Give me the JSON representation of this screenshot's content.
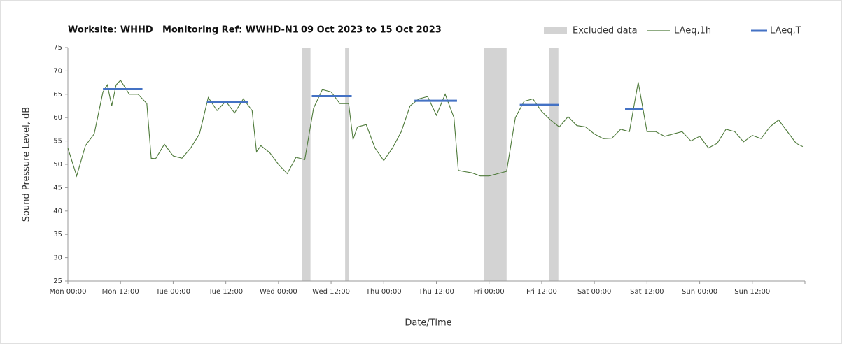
{
  "chart_data": {
    "type": "line",
    "title": [
      "Worksite: WHHD",
      "Monitoring Ref: WWHD-N1",
      "09 Oct 2023 to 15 Oct 2023"
    ],
    "xlabel": "Date/Time",
    "ylabel": "Sound Pressure Level, dB",
    "xlim": [
      0,
      168
    ],
    "ylim": [
      25,
      75
    ],
    "yticks": [
      25,
      30,
      35,
      40,
      45,
      50,
      55,
      60,
      65,
      70,
      75
    ],
    "xticks": [
      {
        "value": 0,
        "label": "Mon 00:00"
      },
      {
        "value": 12,
        "label": "Mon 12:00"
      },
      {
        "value": 24,
        "label": "Tue 00:00"
      },
      {
        "value": 36,
        "label": "Tue 12:00"
      },
      {
        "value": 48,
        "label": "Wed 00:00"
      },
      {
        "value": 60,
        "label": "Wed 12:00"
      },
      {
        "value": 72,
        "label": "Thu 00:00"
      },
      {
        "value": 84,
        "label": "Thu 12:00"
      },
      {
        "value": 96,
        "label": "Fri 00:00"
      },
      {
        "value": 108,
        "label": "Fri 12:00"
      },
      {
        "value": 120,
        "label": "Sat 00:00"
      },
      {
        "value": 132,
        "label": "Sat 12:00"
      },
      {
        "value": 144,
        "label": "Sun 00:00"
      },
      {
        "value": 156,
        "label": "Sun 12:00"
      }
    ],
    "grid": false,
    "excluded": {
      "name": "Excluded data",
      "color": "#d3d3d3",
      "ranges": [
        [
          53.4,
          55.3
        ],
        [
          63.2,
          64.1
        ],
        [
          94.9,
          100
        ],
        [
          109.7,
          111.8
        ]
      ]
    },
    "series": [
      {
        "name": "LAeq,1h",
        "color": "#4e7a3a",
        "x": [
          0,
          2,
          4,
          6,
          8,
          9,
          10,
          11,
          12,
          14,
          16,
          18,
          19,
          20,
          22,
          24,
          26,
          28,
          30,
          32,
          34,
          36,
          38,
          40,
          42,
          43,
          44,
          46,
          48,
          50,
          52,
          54,
          56,
          58,
          60,
          62,
          64,
          65,
          66,
          68,
          70,
          72,
          74,
          76,
          78,
          80,
          82,
          84,
          86,
          88,
          89,
          90,
          92,
          94,
          96,
          98,
          100,
          102,
          104,
          106,
          108,
          110,
          112,
          114,
          116,
          118,
          120,
          122,
          124,
          126,
          128,
          130,
          132,
          134,
          136,
          138,
          140,
          142,
          144,
          146,
          148,
          150,
          152,
          154,
          156,
          158,
          160,
          162,
          164,
          166,
          167.5
        ],
        "values": [
          53.5,
          47.5,
          54,
          56.5,
          65.5,
          67,
          62.5,
          67,
          68,
          65,
          65,
          63,
          51.3,
          51.2,
          54.3,
          51.8,
          51.3,
          53.5,
          56.5,
          64.3,
          61.5,
          63.5,
          61,
          64,
          61.5,
          52.7,
          54,
          52.5,
          50,
          48,
          51.5,
          51,
          62,
          66,
          65.5,
          63,
          63,
          55.3,
          58,
          58.5,
          53.5,
          50.8,
          53.5,
          57,
          62.5,
          64,
          64.5,
          60.5,
          65,
          60,
          48.7,
          48.5,
          48.2,
          47.5,
          47.5,
          48,
          48.5,
          60,
          63.5,
          64,
          61.3,
          59.5,
          58,
          60.2,
          58.3,
          58,
          56.5,
          55.5,
          55.6,
          57.5,
          57,
          67.6,
          57,
          57,
          56,
          56.5,
          57,
          55,
          56,
          53.5,
          54.5,
          57.5,
          57,
          54.8,
          56.2,
          55.5,
          58,
          59.5,
          57,
          54.5,
          53.8
        ]
      },
      {
        "name": "LAeq,T",
        "color": "#4472c4",
        "periods": [
          {
            "start": 8,
            "end": 17,
            "value": 66.1
          },
          {
            "start": 31.7,
            "end": 41,
            "value": 63.4
          },
          {
            "start": 55.6,
            "end": 64.7,
            "value": 64.6
          },
          {
            "start": 79,
            "end": 88.7,
            "value": 63.6
          },
          {
            "start": 103,
            "end": 112,
            "value": 62.7
          },
          {
            "start": 127,
            "end": 131,
            "value": 61.9
          }
        ]
      }
    ]
  }
}
